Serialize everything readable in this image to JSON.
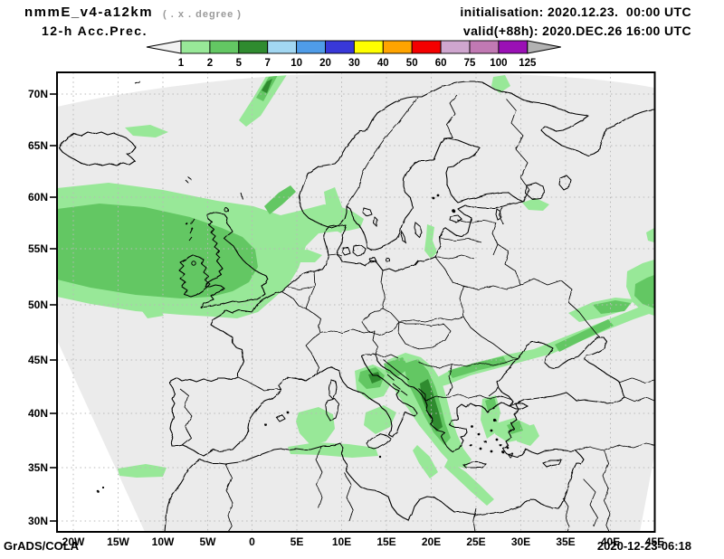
{
  "header": {
    "model": "nmmE_v4-a12km",
    "grid_note": "( . x . degree )",
    "product": "12-h Acc.Prec.",
    "init_line": "initialisation: 2020.12.23.  00:00 UTC",
    "valid_line": "valid(+88h): 2020.DEC.26 16:00 UTC"
  },
  "legend": {
    "levels": [
      "1",
      "2",
      "5",
      "7",
      "10",
      "20",
      "30",
      "40",
      "50",
      "60",
      "75",
      "100",
      "125"
    ],
    "colors": [
      "#98e898",
      "#63c763",
      "#2f8b2f",
      "#a2d7f2",
      "#4f9ce8",
      "#3838d8",
      "#ffff00",
      "#ffa400",
      "#f40000",
      "#cfa6cf",
      "#c179b3",
      "#9a10b5"
    ],
    "below_color": "#f2f2f2",
    "above_color": "#b2b2b2"
  },
  "map": {
    "lat_labels": [
      "70N",
      "65N",
      "60N",
      "55N",
      "50N",
      "45N",
      "40N",
      "35N",
      "30N"
    ],
    "lon_labels": [
      "20W",
      "15W",
      "10W",
      "5W",
      "0",
      "5E",
      "10E",
      "15E",
      "20E",
      "25E",
      "30E",
      "35E",
      "40E",
      "45E"
    ]
  },
  "palette": {
    "map_bg": "#ebebeb",
    "outside": "#ffffff",
    "grid": "#b8b8b8",
    "coast": "#000000",
    "precip_light": "#98e898",
    "precip_medium": "#63c763",
    "precip_dark": "#2f8b2f"
  },
  "footer": {
    "left": "GrADS/COLA",
    "right": "2020-12-23-06:18"
  }
}
